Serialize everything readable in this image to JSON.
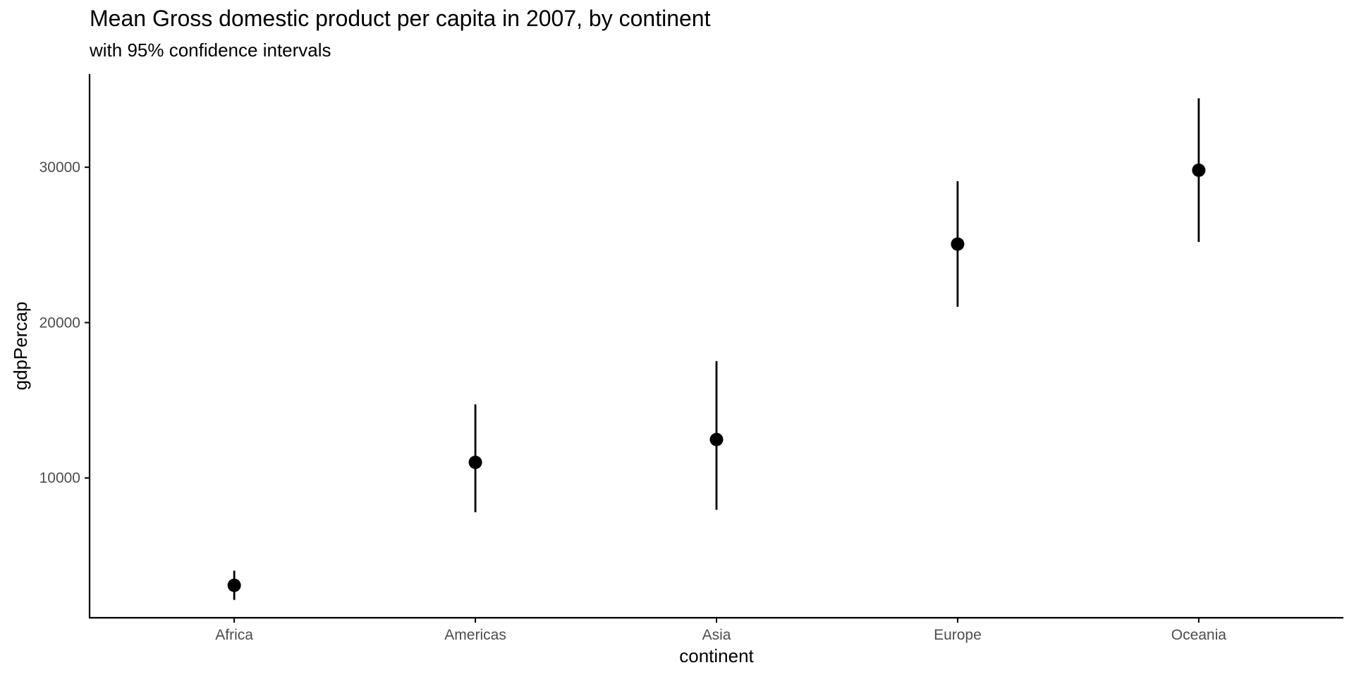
{
  "chart_data": {
    "type": "scatter",
    "title": "Mean Gross domestic product per capita in 2007, by continent",
    "subtitle": "with 95% confidence intervals",
    "xlabel": "continent",
    "ylabel": "gdpPercap",
    "categories": [
      "Africa",
      "Americas",
      "Asia",
      "Europe",
      "Oceania"
    ],
    "series": [
      {
        "values": [
          3089,
          11003,
          12473,
          25054,
          29810
        ],
        "lower": [
          2150,
          7790,
          7950,
          21020,
          25190
        ],
        "upper": [
          4030,
          14740,
          17520,
          29100,
          34440
        ]
      }
    ],
    "y_ticks": [
      10000,
      20000,
      30000
    ],
    "ylim": [
      1000,
      36000
    ],
    "grid": false,
    "legend": "none",
    "colors": {
      "point": "#000000",
      "errorbar": "#000000",
      "axis": "#000000",
      "tick_label": "#4d4d4d"
    }
  }
}
